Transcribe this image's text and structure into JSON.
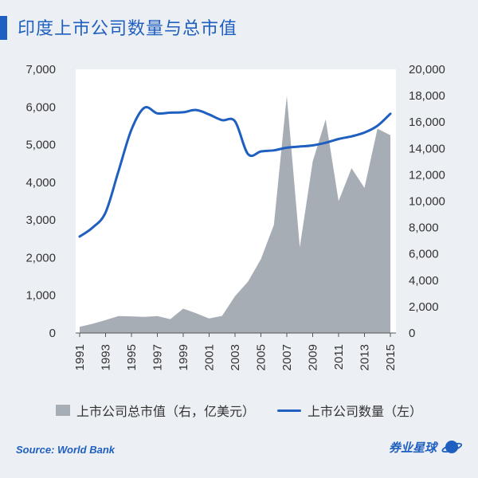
{
  "header": {
    "title": "印度上市公司数量与总市值"
  },
  "footer": {
    "source": "Source: World Bank",
    "brand": "券业星球"
  },
  "colors": {
    "accent": "#1f5fbf",
    "area": "#a6adb5",
    "background": "#eceff4"
  },
  "chart_data": {
    "type": "line+area",
    "title": "印度上市公司数量与总市值",
    "years": [
      1991,
      1992,
      1993,
      1994,
      1995,
      1996,
      1997,
      1998,
      1999,
      2000,
      2001,
      2002,
      2003,
      2004,
      2005,
      2006,
      2007,
      2008,
      2009,
      2010,
      2011,
      2012,
      2013,
      2014,
      2015
    ],
    "x_tick_labels": [
      "1991",
      "1993",
      "1995",
      "1997",
      "1999",
      "2001",
      "2003",
      "2005",
      "2007",
      "2009",
      "2011",
      "2013",
      "2015"
    ],
    "left_axis": {
      "ylim": [
        0,
        7000
      ],
      "ticks": [
        "0",
        "1,000",
        "2,000",
        "3,000",
        "4,000",
        "5,000",
        "6,000",
        "7,000"
      ]
    },
    "right_axis": {
      "ylim": [
        0,
        20000
      ],
      "ticks": [
        "0",
        "2,000",
        "4,000",
        "6,000",
        "8,000",
        "10,000",
        "12,000",
        "14,000",
        "16,000",
        "18,000",
        "20,000"
      ]
    },
    "series": [
      {
        "name": "上市公司总市值（右，亿美元）",
        "type": "area",
        "axis": "right",
        "color": "#a6adb5",
        "values": [
          470,
          700,
          980,
          1280,
          1260,
          1220,
          1280,
          1050,
          1850,
          1500,
          1100,
          1300,
          2800,
          3900,
          5600,
          8200,
          18000,
          6500,
          13000,
          16200,
          10000,
          12500,
          11000,
          15500,
          15000
        ]
      },
      {
        "name": "上市公司数量（左）",
        "type": "line",
        "axis": "left",
        "color": "#1f5fbf",
        "values": [
          2560,
          2800,
          3200,
          4300,
          5400,
          5980,
          5830,
          5850,
          5860,
          5920,
          5800,
          5650,
          5620,
          4750,
          4820,
          4850,
          4920,
          4950,
          4980,
          5050,
          5150,
          5220,
          5320,
          5500,
          5820
        ]
      }
    ],
    "legend": [
      "上市公司总市值（右，亿美元）",
      "上市公司数量（左）"
    ],
    "legend_position": "bottom"
  }
}
